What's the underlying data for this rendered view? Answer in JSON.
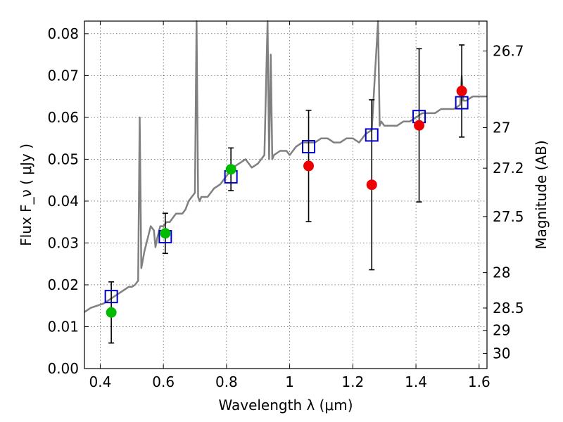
{
  "chart_data": {
    "type": "line",
    "title": "",
    "xlabel": "Wavelength  λ (μm)",
    "ylabel": "Flux  F_ν  ( μJy )",
    "ylabel_right": "Magnitude (AB)",
    "xlim": [
      0.35,
      1.625
    ],
    "ylim": [
      0.0,
      0.083
    ],
    "grid": true,
    "x_ticks": [
      0.4,
      0.6,
      0.8,
      1.0,
      1.2,
      1.4,
      1.6
    ],
    "x_tick_labels": [
      "0.4",
      "0.6",
      "0.8",
      "1",
      "1.2",
      "1.4",
      "1.6"
    ],
    "y_ticks": [
      0.0,
      0.01,
      0.02,
      0.03,
      0.04,
      0.05,
      0.06,
      0.07,
      0.08
    ],
    "y_tick_labels": [
      "0.00",
      "0.01",
      "0.02",
      "0.03",
      "0.04",
      "0.05",
      "0.06",
      "0.07",
      "0.08"
    ],
    "right_ticks": [
      {
        "label": "26.7",
        "value": 26.7
      },
      {
        "label": "27",
        "value": 27.0
      },
      {
        "label": "27.2",
        "value": 27.2
      },
      {
        "label": "27.5",
        "value": 27.5
      },
      {
        "label": "28",
        "value": 28.0
      },
      {
        "label": "28.5",
        "value": 28.5
      },
      {
        "label": "29",
        "value": 29.0
      },
      {
        "label": "30",
        "value": 30.0
      }
    ],
    "series": [
      {
        "kind": "spectrum",
        "color": "#808080",
        "x": [
          0.35,
          0.37,
          0.39,
          0.41,
          0.43,
          0.45,
          0.47,
          0.49,
          0.5,
          0.51,
          0.52,
          0.525,
          0.53,
          0.535,
          0.54,
          0.55,
          0.56,
          0.57,
          0.575,
          0.58,
          0.59,
          0.6,
          0.61,
          0.62,
          0.63,
          0.64,
          0.65,
          0.66,
          0.67,
          0.68,
          0.69,
          0.7,
          0.705,
          0.71,
          0.715,
          0.72,
          0.74,
          0.76,
          0.78,
          0.8,
          0.82,
          0.84,
          0.86,
          0.88,
          0.9,
          0.92,
          0.93,
          0.935,
          0.94,
          0.945,
          0.95,
          0.97,
          0.99,
          1.0,
          1.02,
          1.04,
          1.06,
          1.08,
          1.1,
          1.12,
          1.14,
          1.16,
          1.18,
          1.2,
          1.22,
          1.24,
          1.26,
          1.27,
          1.28,
          1.285,
          1.29,
          1.3,
          1.32,
          1.34,
          1.36,
          1.38,
          1.4,
          1.42,
          1.44,
          1.46,
          1.48,
          1.5,
          1.52,
          1.54,
          1.545,
          1.55,
          1.56,
          1.58,
          1.6,
          1.625
        ],
        "y": [
          0.0135,
          0.0145,
          0.015,
          0.0155,
          0.0165,
          0.0175,
          0.0185,
          0.0195,
          0.0195,
          0.02,
          0.021,
          0.06,
          0.024,
          0.026,
          0.028,
          0.031,
          0.034,
          0.033,
          0.029,
          0.031,
          0.034,
          0.034,
          0.035,
          0.035,
          0.036,
          0.037,
          0.037,
          0.037,
          0.038,
          0.04,
          0.041,
          0.042,
          0.083,
          0.041,
          0.04,
          0.041,
          0.041,
          0.043,
          0.044,
          0.046,
          0.048,
          0.049,
          0.05,
          0.048,
          0.049,
          0.051,
          0.083,
          0.05,
          0.075,
          0.05,
          0.051,
          0.052,
          0.052,
          0.051,
          0.053,
          0.054,
          0.054,
          0.054,
          0.055,
          0.055,
          0.054,
          0.054,
          0.055,
          0.055,
          0.054,
          0.056,
          0.057,
          0.07,
          0.083,
          0.058,
          0.059,
          0.058,
          0.058,
          0.058,
          0.059,
          0.059,
          0.06,
          0.061,
          0.061,
          0.061,
          0.062,
          0.062,
          0.062,
          0.063,
          0.07,
          0.064,
          0.064,
          0.065,
          0.065,
          0.065
        ]
      },
      {
        "kind": "model_photometry",
        "color": "#0000cc",
        "marker": "open-square",
        "x": [
          0.435,
          0.606,
          0.814,
          1.06,
          1.26,
          1.41,
          1.545
        ],
        "y": [
          0.0172,
          0.0315,
          0.0458,
          0.053,
          0.0558,
          0.0602,
          0.0635
        ]
      },
      {
        "kind": "observed_optical",
        "color": "#00bb00",
        "marker": "filled-circle",
        "x": [
          0.435,
          0.606,
          0.814
        ],
        "y": [
          0.0134,
          0.0323,
          0.0476
        ],
        "err": [
          0.0073,
          0.0048,
          0.0051
        ]
      },
      {
        "kind": "observed_nir",
        "color": "#ee0000",
        "marker": "filled-circle",
        "x": [
          1.06,
          1.26,
          1.41,
          1.545
        ],
        "y": [
          0.0484,
          0.0439,
          0.0581,
          0.0663
        ],
        "err": [
          0.0133,
          0.0203,
          0.0183,
          0.011
        ]
      }
    ]
  }
}
